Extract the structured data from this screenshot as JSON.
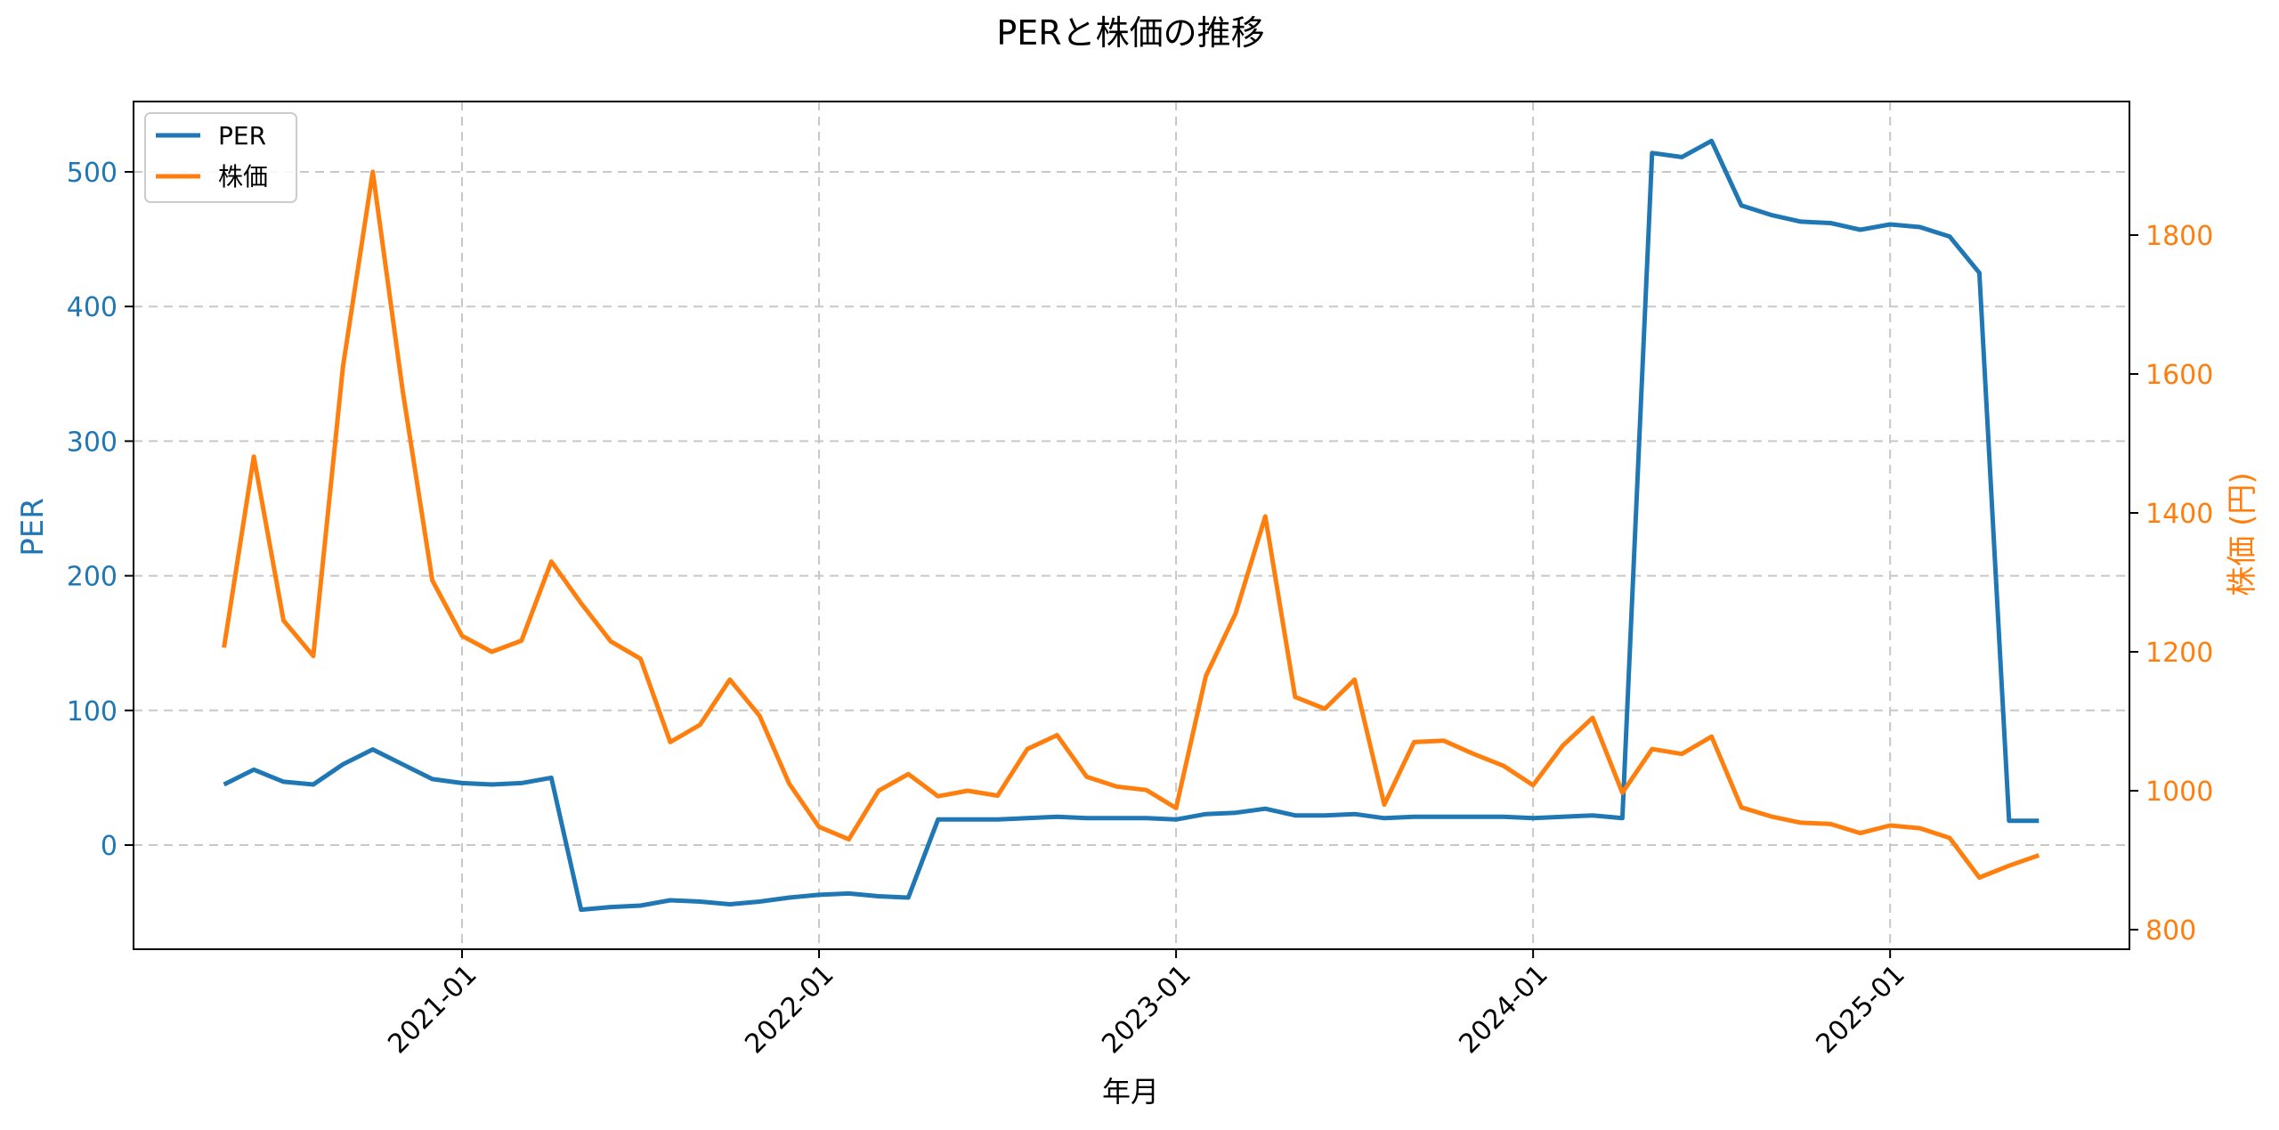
{
  "figure": {
    "title": "PERと株価の推移",
    "xlabel": "年月",
    "ylabel_left": "PER",
    "ylabel_right": "株価 (円)",
    "legend": [
      {
        "label": "PER",
        "color": "#1f77b4"
      },
      {
        "label": "株価",
        "color": "#ff7f0e"
      }
    ],
    "left_ticks": [
      "0",
      "100",
      "200",
      "300",
      "400",
      "500"
    ],
    "right_ticks": [
      "800",
      "1000",
      "1200",
      "1400",
      "1600",
      "1800"
    ],
    "x_ticks": [
      "2021-01",
      "2022-01",
      "2023-01",
      "2024-01",
      "2025-01"
    ]
  },
  "chart_data": {
    "type": "line",
    "title": "PERと株価の推移",
    "xlabel": "年月",
    "ylabel": "PER",
    "ylabel_right": "株価 (円)",
    "ylim": [
      -78,
      552
    ],
    "ylim_right": [
      778,
      1990
    ],
    "grid": true,
    "legend_position": "upper left",
    "x_tick_labels": [
      "2021-01",
      "2022-01",
      "2023-01",
      "2024-01",
      "2025-01"
    ],
    "x": [
      "2020-05",
      "2020-06",
      "2020-07",
      "2020-08",
      "2020-09",
      "2020-10",
      "2020-11",
      "2020-12",
      "2021-01",
      "2021-02",
      "2021-03",
      "2021-04",
      "2021-05",
      "2021-06",
      "2021-07",
      "2021-08",
      "2021-09",
      "2021-10",
      "2021-11",
      "2021-12",
      "2022-01",
      "2022-02",
      "2022-03",
      "2022-04",
      "2022-05",
      "2022-06",
      "2022-07",
      "2022-08",
      "2022-09",
      "2022-10",
      "2022-11",
      "2022-12",
      "2023-01",
      "2023-02",
      "2023-03",
      "2023-04",
      "2023-05",
      "2023-06",
      "2023-07",
      "2023-08",
      "2023-09",
      "2023-10",
      "2023-11",
      "2023-12",
      "2024-01",
      "2024-02",
      "2024-03",
      "2024-04",
      "2024-05",
      "2024-06",
      "2024-07",
      "2024-08",
      "2024-09",
      "2024-10",
      "2024-11",
      "2024-12",
      "2025-01",
      "2025-02",
      "2025-03",
      "2025-04",
      "2025-05",
      "2025-06"
    ],
    "series": [
      {
        "name": "PER",
        "axis": "left",
        "color": "#1f77b4",
        "values": [
          45,
          56,
          47,
          45,
          60,
          71,
          60,
          49,
          46,
          45,
          46,
          50,
          -48,
          -46,
          -45,
          -41,
          -42,
          -44,
          -42,
          -39,
          -37,
          -36,
          -38,
          -39,
          19,
          19,
          19,
          20,
          21,
          20,
          20,
          20,
          19,
          23,
          24,
          27,
          22,
          22,
          23,
          20,
          21,
          21,
          21,
          21,
          20,
          21,
          22,
          20,
          514,
          511,
          523,
          475,
          468,
          463,
          462,
          457,
          461,
          459,
          452,
          425,
          18,
          18
        ]
      },
      {
        "name": "株価",
        "axis": "right",
        "color": "#ff7f0e",
        "values": [
          1206,
          1481,
          1245,
          1194,
          1611,
          1891,
          1577,
          1303,
          1223,
          1200,
          1216,
          1330,
          1270,
          1215,
          1190,
          1070,
          1095,
          1160,
          1108,
          1010,
          948,
          930,
          1000,
          1024,
          992,
          1000,
          993,
          1060,
          1080,
          1020,
          1006,
          1001,
          975,
          1165,
          1255,
          1395,
          1135,
          1118,
          1160,
          980,
          1070,
          1072,
          1053,
          1036,
          1008,
          1065,
          1105,
          997,
          1060,
          1053,
          1078,
          976,
          963,
          954,
          952,
          939,
          950,
          946,
          932,
          875,
          892,
          907
        ]
      }
    ]
  }
}
